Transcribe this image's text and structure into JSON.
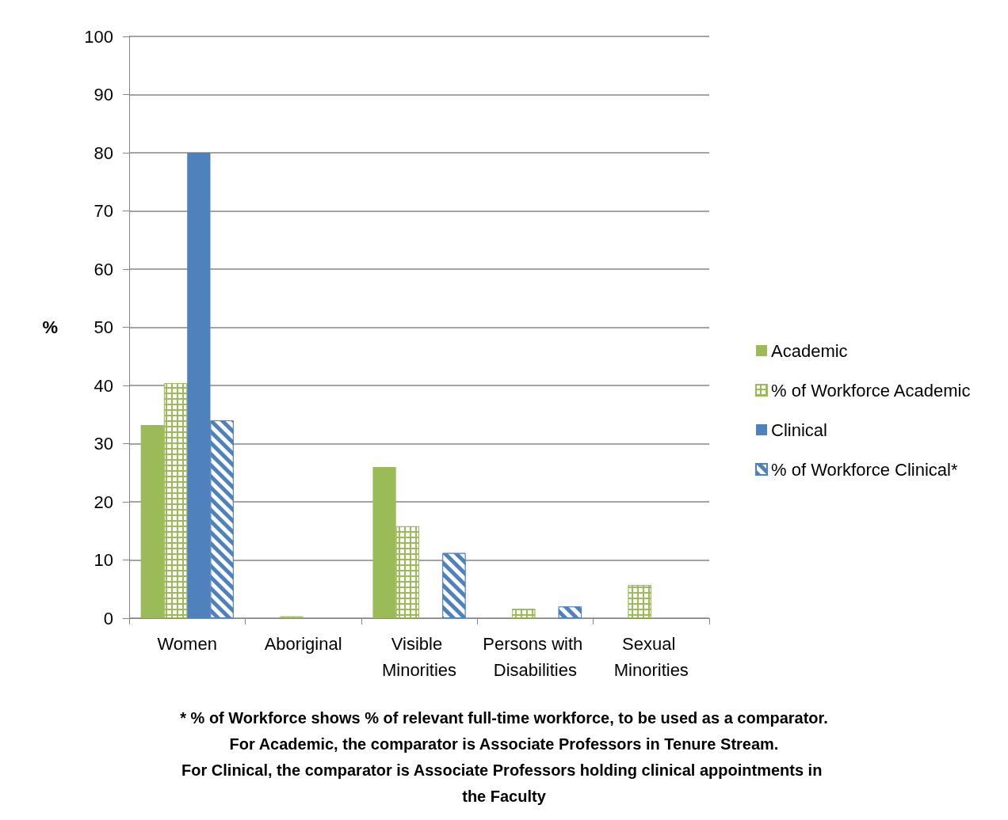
{
  "chart_data": {
    "type": "bar",
    "ylabel": "%",
    "categories": [
      "Women",
      "Aboriginal",
      "Visible Minorities",
      "Persons with Disabilities",
      "Sexual Minorities"
    ],
    "series": [
      {
        "name": "Academic",
        "color": "#9bbb59",
        "values": [
          33.2,
          null,
          26.0,
          null,
          null
        ]
      },
      {
        "name": "% of Workforce Academic",
        "color": "#9bbb59",
        "values": [
          40.4,
          0.3,
          15.8,
          1.6,
          5.7
        ]
      },
      {
        "name": "Clinical",
        "color": "#4f81bd",
        "values": [
          80.0,
          null,
          null,
          null,
          null
        ]
      },
      {
        "name": "% of Workforce Clinical*",
        "color": "#4f81bd",
        "values": [
          34.0,
          null,
          11.2,
          2.0,
          null
        ]
      }
    ],
    "ylim": [
      0,
      100
    ],
    "yticks": [
      0,
      10,
      20,
      30,
      40,
      50,
      60,
      70,
      80,
      90,
      100
    ],
    "grid": "y",
    "legend": "right",
    "annotations": [
      "* % of Workforce shows % of relevant full-time workforce, to be used as a comparator.",
      "For Academic, the comparator is Associate Professors in Tenure Stream.",
      "For Clinical, the comparator is Associate Professors holding clinical appointments in the Faculty"
    ]
  }
}
